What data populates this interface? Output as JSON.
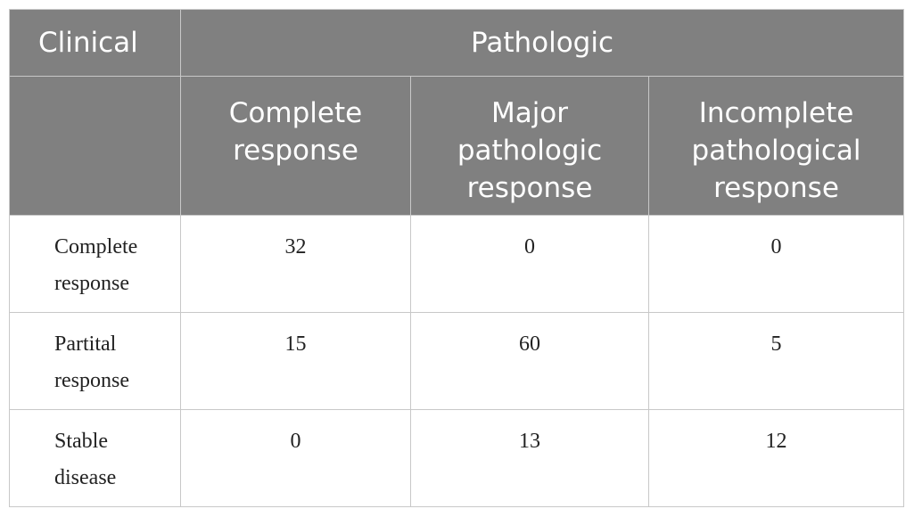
{
  "table": {
    "header_row1": {
      "clinical": "Clinical",
      "pathologic": "Pathologic"
    },
    "header_row2": [
      [
        "Complete",
        "response"
      ],
      [
        "Major",
        "pathologic",
        "response"
      ],
      [
        "Incomplete",
        "pathological",
        "response"
      ]
    ],
    "rows": [
      {
        "label": [
          "Complete",
          "response"
        ],
        "values": [
          "32",
          "0",
          "0"
        ]
      },
      {
        "label": [
          "Partital",
          "response"
        ],
        "values": [
          "15",
          "60",
          "5"
        ]
      },
      {
        "label": [
          "Stable",
          "disease"
        ],
        "values": [
          "0",
          "13",
          "12"
        ]
      }
    ]
  }
}
